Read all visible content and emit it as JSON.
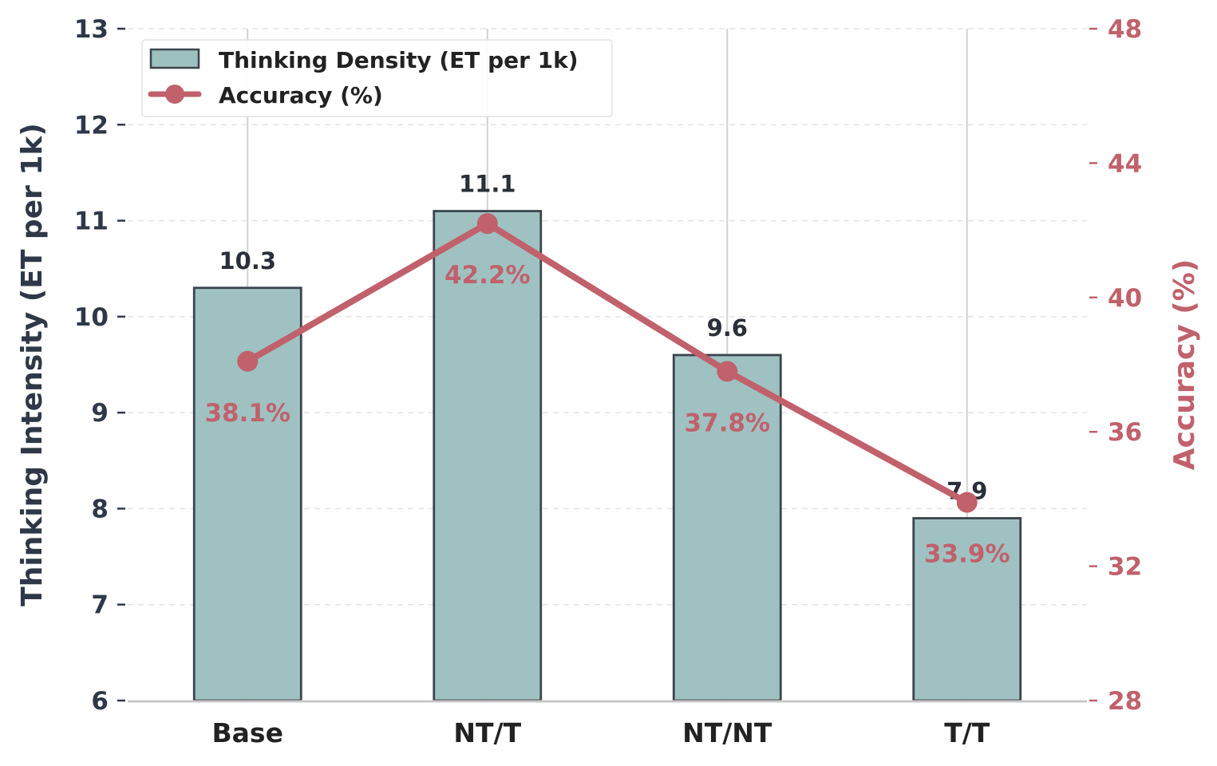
{
  "chart_data": {
    "type": "bar",
    "categories": [
      "Base",
      "NT/T",
      "NT/NT",
      "T/T"
    ],
    "series": [
      {
        "name": "Thinking Density (ET per 1k)",
        "type": "bar",
        "axis": "left",
        "values": [
          10.3,
          11.1,
          9.6,
          7.9
        ],
        "labels": [
          "10.3",
          "11.1",
          "9.6",
          "7.9"
        ],
        "color": "#9dc0c1",
        "edge_color": "#3b444c"
      },
      {
        "name": "Accuracy (%)",
        "type": "line",
        "axis": "right",
        "values": [
          38.1,
          42.2,
          37.8,
          33.9
        ],
        "labels": [
          "38.1%",
          "42.2%",
          "37.8%",
          "33.9%"
        ],
        "color": "#c0616b"
      }
    ],
    "ylabel": "Thinking Intensity (ET per 1k)",
    "ylim": [
      6,
      13
    ],
    "yticks": [
      "6",
      "7",
      "8",
      "9",
      "10",
      "11",
      "12",
      "13"
    ],
    "y2label": "Accuracy (%)",
    "y2lim": [
      28,
      48
    ],
    "y2ticks": [
      "28",
      "32",
      "36",
      "40",
      "44",
      "48"
    ],
    "grid": true,
    "legend": "top-left"
  }
}
